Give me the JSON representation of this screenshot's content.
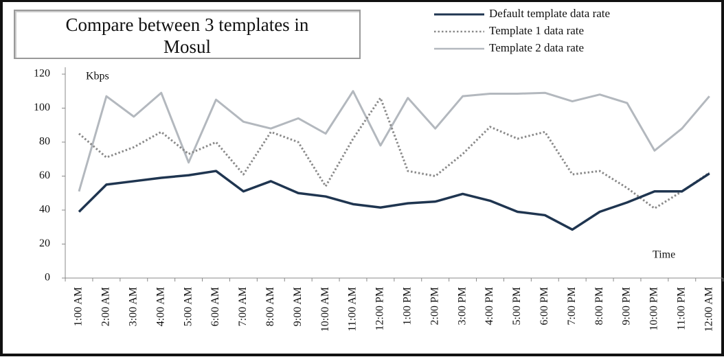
{
  "chart_data": {
    "type": "line",
    "title": "Compare between 3 templates in Mosul",
    "y_label": "Kbps",
    "x_label": "Time",
    "categories": [
      "1:00 AM",
      "2:00 AM",
      "3:00 AM",
      "4:00 AM",
      "5:00 AM",
      "6:00 AM",
      "7:00 AM",
      "8:00 AM",
      "9:00 AM",
      "10:00 AM",
      "11:00 AM",
      "12:00 PM",
      "1:00 PM",
      "2:00 PM",
      "3:00 PM",
      "4:00 PM",
      "5:00 PM",
      "6:00 PM",
      "7:00 PM",
      "8:00 PM",
      "9:00 PM",
      "10:00 PM",
      "11:00 PM",
      "12:00 AM"
    ],
    "series": [
      {
        "name": "Default template data rate",
        "color": "#1f3550",
        "dash": "solid",
        "values": [
          39,
          55,
          57,
          59,
          60.5,
          63,
          51,
          57,
          50,
          48,
          43.5,
          41.5,
          44,
          45,
          49.5,
          45.5,
          39,
          37,
          28.5,
          39,
          44.5,
          51,
          51,
          61.5
        ]
      },
      {
        "name": "Template 1 data rate",
        "color": "#8a8a8a",
        "dash": "dotted",
        "values": [
          85,
          71,
          77,
          86,
          73,
          80,
          61,
          86,
          80,
          54,
          82,
          106,
          63,
          60,
          73,
          89,
          82,
          86,
          61,
          63,
          53,
          41,
          51,
          62
        ]
      },
      {
        "name": "Template 2 data rate",
        "color": "#b3b8be",
        "dash": "solid",
        "values": [
          51,
          107,
          95,
          109,
          68,
          105,
          92,
          88,
          94,
          85,
          110,
          78,
          106,
          88,
          107,
          108.5,
          108.5,
          109,
          104,
          108,
          103,
          75,
          88,
          107
        ]
      }
    ],
    "ylim": [
      0,
      120
    ],
    "yticks": [
      0,
      20,
      40,
      60,
      80,
      100,
      120
    ],
    "grid": false,
    "legend": "top-right"
  }
}
